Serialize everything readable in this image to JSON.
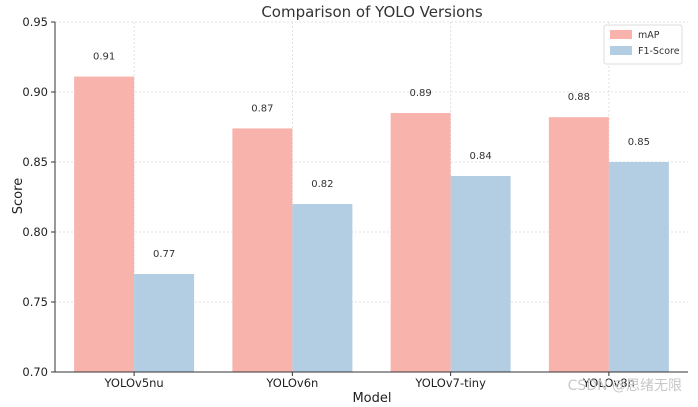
{
  "chart_data": {
    "type": "bar",
    "title": "Comparison of YOLO Versions",
    "xlabel": "Model",
    "ylabel": "Score",
    "categories": [
      "YOLOv5nu",
      "YOLOv6n",
      "YOLOv7-tiny",
      "YOLOv8n"
    ],
    "series": [
      {
        "name": "mAP",
        "values": [
          0.911,
          0.874,
          0.885,
          0.882
        ],
        "labels": [
          "0.91",
          "0.87",
          "0.89",
          "0.88"
        ],
        "color": "#f9b3ad"
      },
      {
        "name": "F1-Score",
        "values": [
          0.77,
          0.82,
          0.84,
          0.85
        ],
        "labels": [
          "0.77",
          "0.82",
          "0.84",
          "0.85"
        ],
        "color": "#b3cde3"
      }
    ],
    "ylim": [
      0.7,
      0.95
    ],
    "yticks": [
      "0.70",
      "0.75",
      "0.80",
      "0.85",
      "0.90",
      "0.95"
    ],
    "grid": true,
    "legend_position": "top-right"
  },
  "watermark": "CSDN @思绪无限"
}
